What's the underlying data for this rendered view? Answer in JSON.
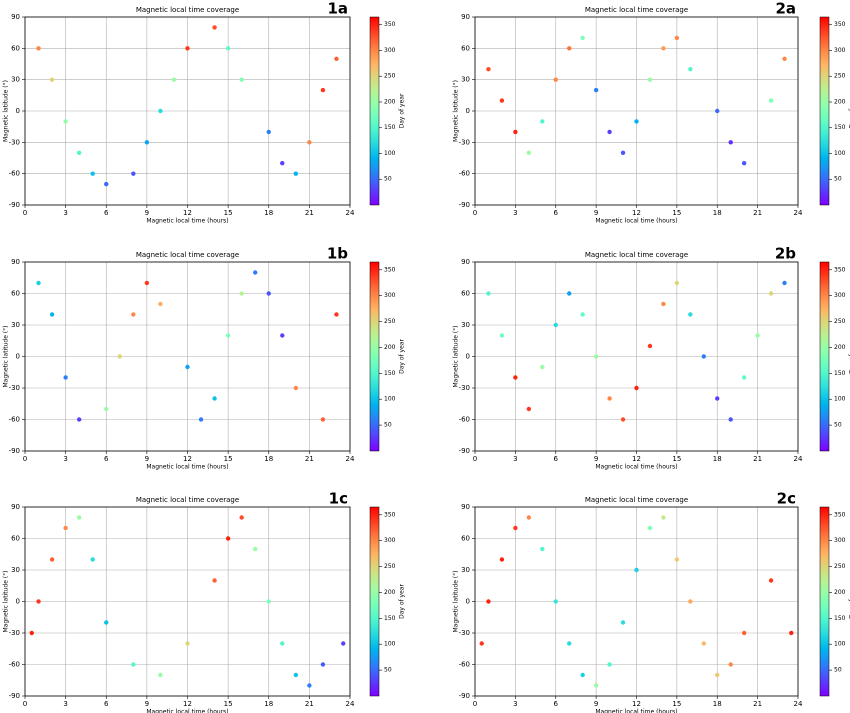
{
  "chart_data": [
    {
      "type": "scatter",
      "panel": "1a",
      "title": "Magnetic  local  time coverage",
      "xlabel": "Magnetic  local  time (hours)",
      "ylabel": "Magnetic latitude (°)",
      "xlim": [
        0,
        24
      ],
      "xticks": [
        0,
        3,
        6,
        9,
        12,
        15,
        18,
        21,
        24
      ],
      "ylim": [
        -90,
        90
      ],
      "yticks": [
        -90,
        -60,
        -30,
        0,
        30,
        60,
        90
      ],
      "grid": true,
      "colorbar": {
        "label": "Day of year",
        "cmap": "rainbow",
        "lim": [
          0,
          365
        ],
        "ticks": [
          50,
          100,
          150,
          200,
          250,
          300,
          350
        ]
      },
      "x": [
        1,
        2,
        3,
        4,
        5,
        6,
        8,
        9,
        10,
        11,
        12,
        14,
        15,
        16,
        18,
        19,
        20,
        21,
        22,
        23
      ],
      "values": [
        60,
        30,
        -10,
        -40,
        -60,
        -70,
        -60,
        -30,
        0,
        30,
        60,
        80,
        60,
        30,
        -20,
        -50,
        -60,
        -30,
        20,
        50
      ],
      "color_values": [
        300,
        250,
        200,
        150,
        100,
        50,
        40,
        80,
        120,
        200,
        340,
        330,
        160,
        180,
        60,
        30,
        90,
        300,
        340,
        320
      ]
    },
    {
      "type": "scatter",
      "panel": "1b",
      "title": "Magnetic  local  time coverage",
      "xlabel": "Magnetic  local  time (hours)",
      "ylabel": "Magnetic latitude (°)",
      "xlim": [
        0,
        24
      ],
      "xticks": [
        0,
        3,
        6,
        9,
        12,
        15,
        18,
        21,
        24
      ],
      "ylim": [
        -90,
        90
      ],
      "yticks": [
        -90,
        -60,
        -30,
        0,
        30,
        60,
        90
      ],
      "grid": true,
      "colorbar": {
        "label": "Day of year",
        "cmap": "rainbow",
        "lim": [
          0,
          365
        ],
        "ticks": [
          50,
          100,
          150,
          200,
          250,
          300,
          350
        ]
      },
      "x": [
        1,
        2,
        3,
        4,
        6,
        7,
        8,
        9,
        10,
        12,
        13,
        14,
        15,
        16,
        17,
        18,
        19,
        20,
        22,
        23
      ],
      "values": [
        70,
        40,
        -20,
        -60,
        -50,
        0,
        40,
        70,
        50,
        -10,
        -60,
        -40,
        20,
        60,
        80,
        60,
        20,
        -30,
        -60,
        40
      ],
      "color_values": [
        110,
        90,
        60,
        30,
        200,
        250,
        300,
        340,
        280,
        80,
        60,
        100,
        180,
        220,
        60,
        40,
        30,
        300,
        320,
        340
      ]
    },
    {
      "type": "scatter",
      "panel": "1c",
      "title": "Magnetic  local  time coverage",
      "xlabel": "Magnetic  local  time (hours)",
      "ylabel": "Magnetic latitude (°)",
      "xlim": [
        0,
        24
      ],
      "xticks": [
        0,
        3,
        6,
        9,
        12,
        15,
        18,
        21,
        24
      ],
      "ylim": [
        -90,
        90
      ],
      "yticks": [
        -90,
        -60,
        -30,
        0,
        30,
        60,
        90
      ],
      "grid": true,
      "colorbar": {
        "label": "Day of year",
        "cmap": "rainbow",
        "lim": [
          0,
          365
        ],
        "ticks": [
          50,
          100,
          150,
          200,
          250,
          300,
          350
        ]
      },
      "x": [
        0.5,
        1,
        2,
        3,
        4,
        5,
        6,
        8,
        10,
        12,
        14,
        15,
        16,
        17,
        18,
        19,
        20,
        21,
        22,
        23.5
      ],
      "values": [
        -30,
        0,
        40,
        70,
        80,
        40,
        -20,
        -60,
        -70,
        -40,
        20,
        60,
        80,
        50,
        0,
        -40,
        -70,
        -80,
        -60,
        -40
      ],
      "color_values": [
        350,
        340,
        320,
        300,
        200,
        120,
        100,
        150,
        200,
        250,
        320,
        350,
        330,
        200,
        180,
        150,
        100,
        60,
        40,
        30
      ]
    },
    {
      "type": "scatter",
      "panel": "2a",
      "title": "Magnetic  local  time coverage",
      "xlabel": "Magnetic  local  time (hours)",
      "ylabel": "Magnetic latitude (°)",
      "xlim": [
        0,
        24
      ],
      "xticks": [
        0,
        3,
        6,
        9,
        12,
        15,
        18,
        21,
        24
      ],
      "ylim": [
        -90,
        90
      ],
      "yticks": [
        -90,
        -60,
        -30,
        0,
        30,
        60,
        90
      ],
      "grid": true,
      "colorbar": {
        "label": "Day of year",
        "cmap": "rainbow",
        "lim": [
          0,
          365
        ],
        "ticks": [
          50,
          100,
          150,
          200,
          250,
          300,
          350
        ]
      },
      "x": [
        1,
        2,
        3,
        4,
        5,
        6,
        7,
        8,
        9,
        10,
        11,
        12,
        13,
        14,
        15,
        16,
        18,
        19,
        20,
        22,
        23
      ],
      "values": [
        40,
        10,
        -20,
        -40,
        -10,
        30,
        60,
        70,
        20,
        -20,
        -40,
        -10,
        30,
        60,
        70,
        40,
        0,
        -30,
        -50,
        10,
        50
      ],
      "color_values": [
        330,
        340,
        350,
        200,
        150,
        300,
        310,
        180,
        60,
        30,
        40,
        90,
        200,
        290,
        300,
        150,
        50,
        20,
        40,
        180,
        300
      ]
    },
    {
      "type": "scatter",
      "panel": "2b",
      "title": "Magnetic  local  time coverage",
      "xlabel": "Magnetic  local  time (hours)",
      "ylabel": "Magnetic latitude (°)",
      "xlim": [
        0,
        24
      ],
      "xticks": [
        0,
        3,
        6,
        9,
        12,
        15,
        18,
        21,
        24
      ],
      "ylim": [
        -90,
        90
      ],
      "yticks": [
        -90,
        -60,
        -30,
        0,
        30,
        60,
        90
      ],
      "grid": true,
      "colorbar": {
        "label": "Day of year",
        "cmap": "rainbow",
        "lim": [
          0,
          365
        ],
        "ticks": [
          50,
          100,
          150,
          200,
          250,
          300,
          350
        ]
      },
      "x": [
        1,
        2,
        3,
        4,
        5,
        6,
        7,
        8,
        9,
        10,
        11,
        12,
        13,
        14,
        15,
        16,
        17,
        18,
        19,
        20,
        21,
        22,
        23
      ],
      "values": [
        60,
        20,
        -20,
        -50,
        -10,
        30,
        60,
        40,
        0,
        -40,
        -60,
        -30,
        10,
        50,
        70,
        40,
        0,
        -40,
        -60,
        -20,
        20,
        60,
        70
      ],
      "color_values": [
        150,
        170,
        350,
        340,
        200,
        120,
        80,
        160,
        200,
        300,
        330,
        350,
        340,
        300,
        250,
        120,
        60,
        30,
        40,
        160,
        200,
        250,
        60
      ]
    },
    {
      "type": "scatter",
      "panel": "2c",
      "title": "Magnetic  local  time coverage",
      "xlabel": "Magnetic  local  time (hours)",
      "ylabel": "Magnetic latitude (°)",
      "xlim": [
        0,
        24
      ],
      "xticks": [
        0,
        3,
        6,
        9,
        12,
        15,
        18,
        21,
        24
      ],
      "ylim": [
        -90,
        90
      ],
      "yticks": [
        -90,
        -60,
        -30,
        0,
        30,
        60,
        90
      ],
      "grid": true,
      "colorbar": {
        "label": "Day of year",
        "cmap": "rainbow",
        "lim": [
          0,
          365
        ],
        "ticks": [
          50,
          100,
          150,
          200,
          250,
          300,
          350
        ]
      },
      "x": [
        0.5,
        1,
        2,
        3,
        4,
        5,
        6,
        7,
        8,
        9,
        10,
        11,
        12,
        13,
        14,
        15,
        16,
        17,
        18,
        19,
        20,
        22,
        23.5
      ],
      "values": [
        -40,
        0,
        40,
        70,
        80,
        50,
        0,
        -40,
        -70,
        -80,
        -60,
        -20,
        30,
        70,
        80,
        40,
        0,
        -40,
        -70,
        -60,
        -30,
        20,
        -30
      ],
      "color_values": [
        340,
        350,
        350,
        340,
        300,
        150,
        130,
        120,
        110,
        200,
        150,
        120,
        110,
        180,
        230,
        260,
        280,
        270,
        260,
        300,
        320,
        340,
        350
      ]
    }
  ]
}
